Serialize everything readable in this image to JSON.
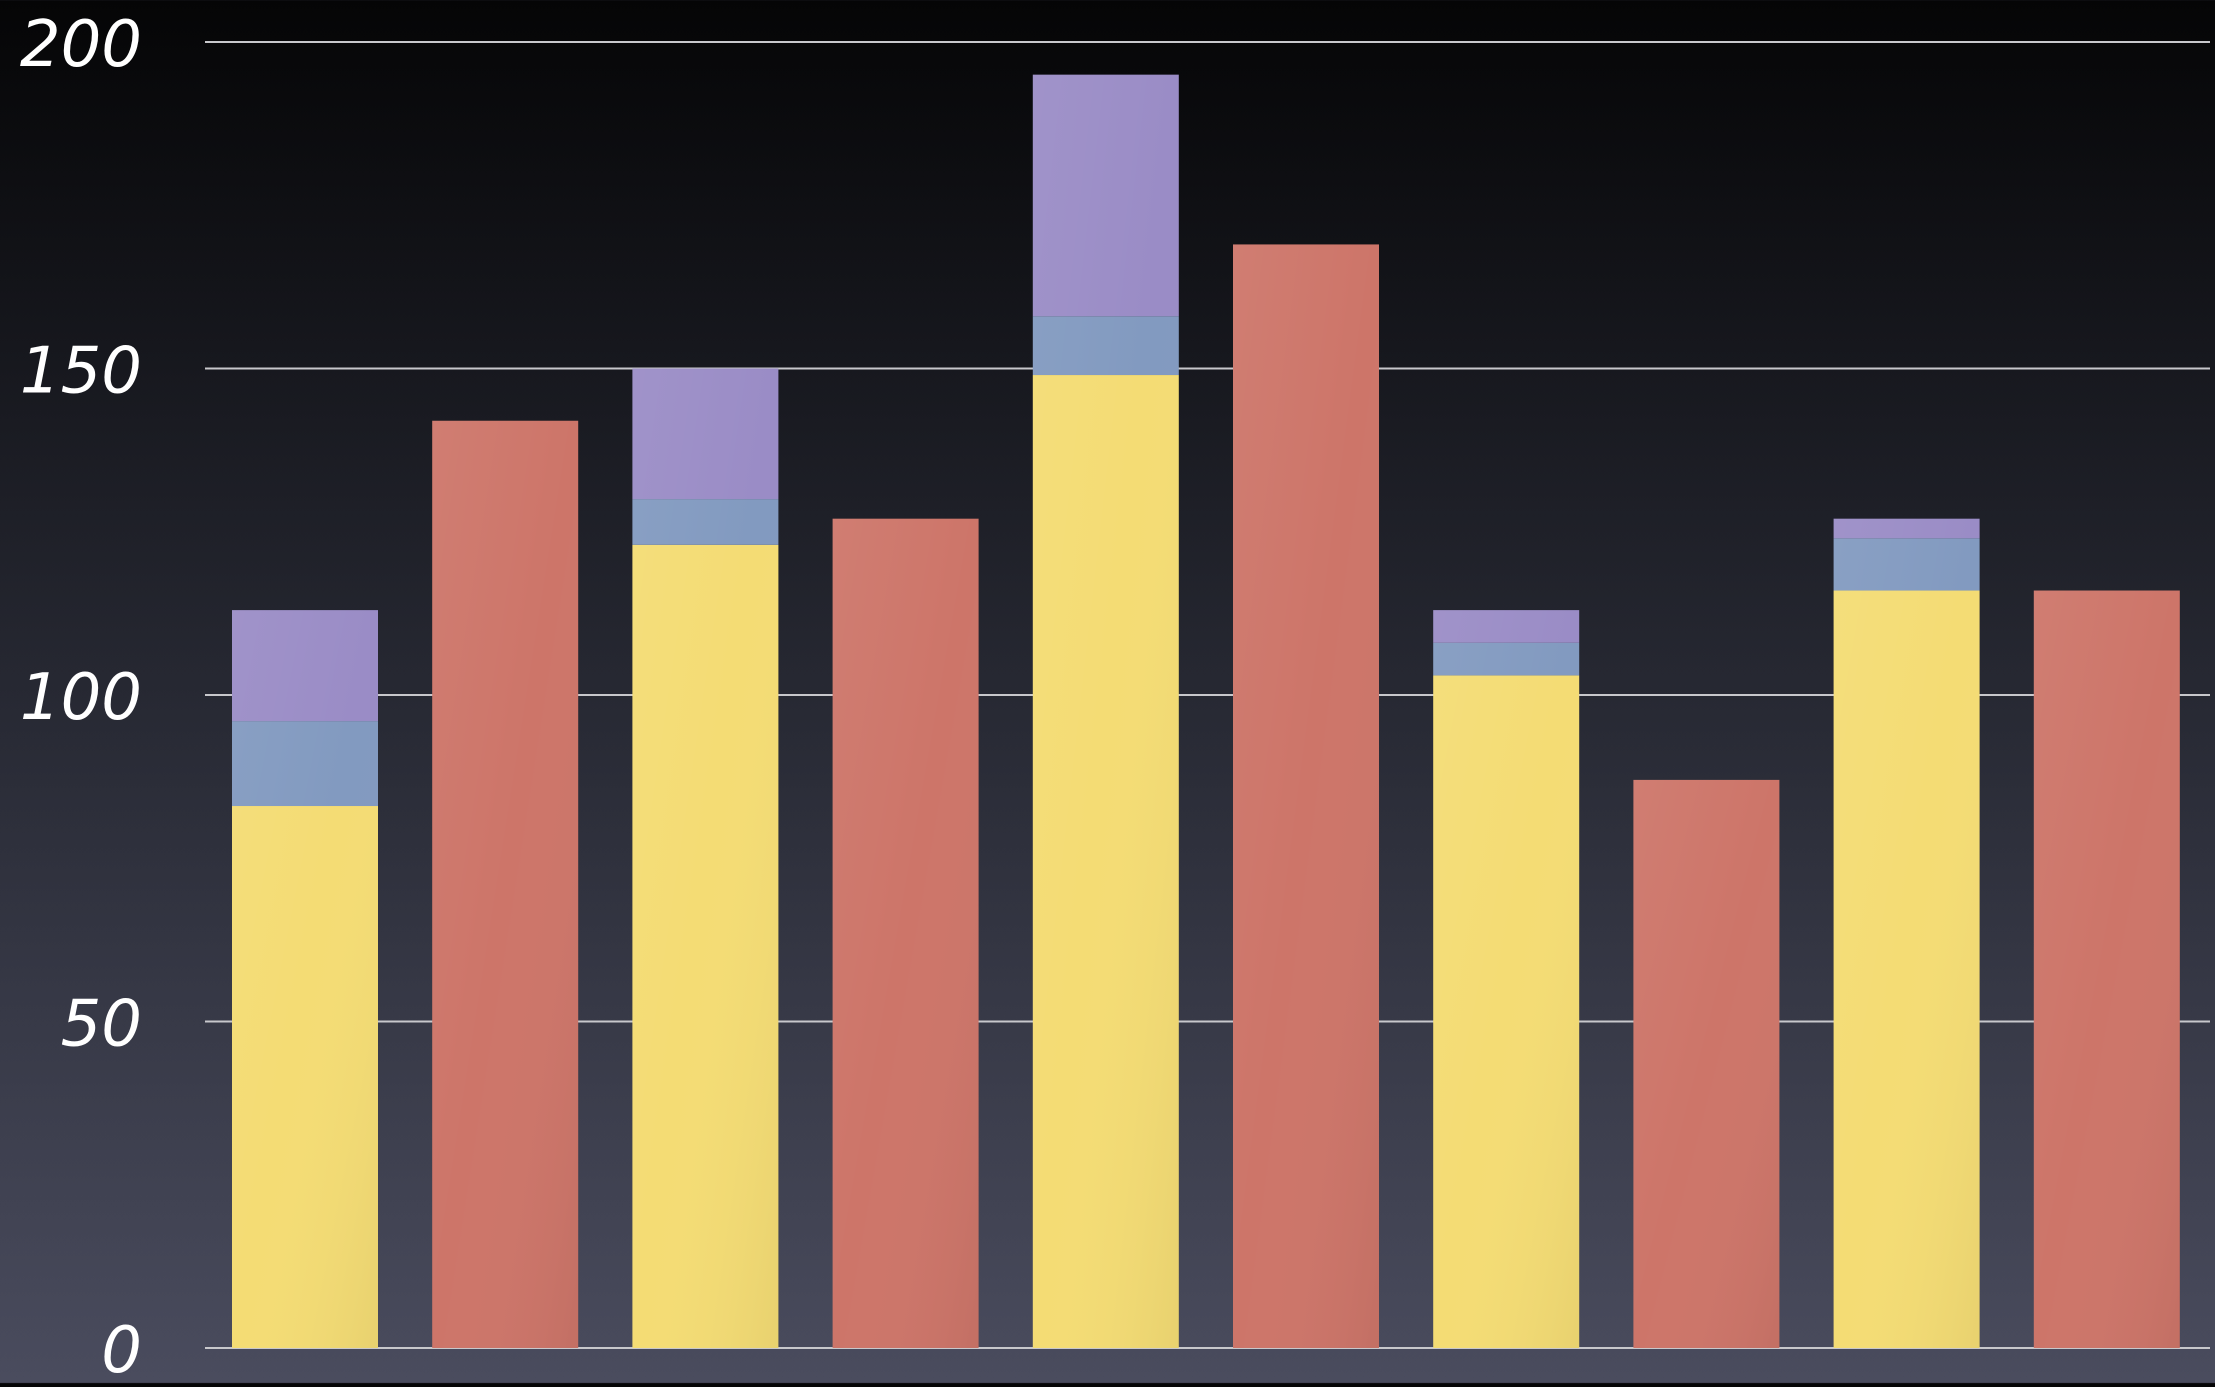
{
  "chart_data": {
    "type": "bar",
    "stacked": true,
    "grid": true,
    "ylim": [
      0,
      200
    ],
    "yticks": [
      0,
      50,
      100,
      150,
      200
    ],
    "ytick_labels": [
      "0",
      "50",
      "100",
      "150",
      "200"
    ],
    "bars": [
      {
        "segments": [
          {
            "color": "#f4dc74",
            "value": 83
          },
          {
            "color": "#829ac0",
            "value": 13
          },
          {
            "color": "#9a8cc6",
            "value": 17
          }
        ]
      },
      {
        "segments": [
          {
            "color": "#cd7569",
            "value": 142
          }
        ]
      },
      {
        "segments": [
          {
            "color": "#f4dc74",
            "value": 123
          },
          {
            "color": "#829ac0",
            "value": 7
          },
          {
            "color": "#9a8cc6",
            "value": 20
          }
        ]
      },
      {
        "segments": [
          {
            "color": "#cd7569",
            "value": 127
          }
        ]
      },
      {
        "segments": [
          {
            "color": "#f4dc74",
            "value": 149
          },
          {
            "color": "#829ac0",
            "value": 9
          },
          {
            "color": "#9a8cc6",
            "value": 37
          }
        ]
      },
      {
        "segments": [
          {
            "color": "#cd7569",
            "value": 169
          }
        ]
      },
      {
        "segments": [
          {
            "color": "#f4dc74",
            "value": 103
          },
          {
            "color": "#829ac0",
            "value": 5
          },
          {
            "color": "#9a8cc6",
            "value": 5
          }
        ]
      },
      {
        "segments": [
          {
            "color": "#cd7569",
            "value": 87
          }
        ]
      },
      {
        "segments": [
          {
            "color": "#f4dc74",
            "value": 116
          },
          {
            "color": "#829ac0",
            "value": 8
          },
          {
            "color": "#9a8cc6",
            "value": 3
          }
        ]
      },
      {
        "segments": [
          {
            "color": "#cd7569",
            "value": 116
          }
        ]
      }
    ],
    "colors": {
      "yellow": "#f4dc74",
      "blue": "#829ac0",
      "purple": "#9a8cc6",
      "red": "#cd7569",
      "grid": "#c8c8cc",
      "tick_text": "#ffffff"
    }
  }
}
